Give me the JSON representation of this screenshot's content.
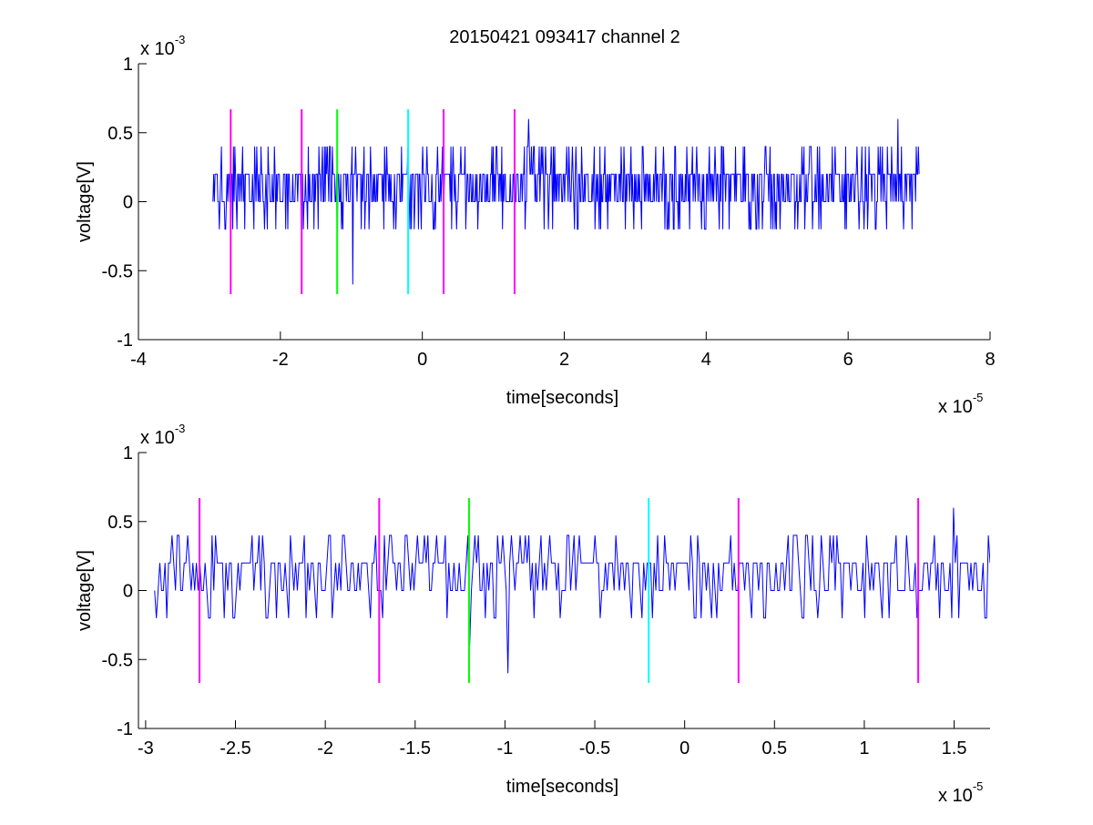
{
  "figure": {
    "title": "20150421 093417 channel 2"
  },
  "colors": {
    "signal": "#0000ff",
    "marker_a": "#ff00ff",
    "marker_b": "#00ff00",
    "marker_c": "#00ffff",
    "axes": "#000000"
  },
  "chart_data": [
    {
      "type": "line",
      "name": "full-trace",
      "xlabel": "time[seconds]",
      "ylabel": "voltage[V]",
      "x_exponent_label": "x 10",
      "x_exponent": "-5",
      "y_exponent_label": "x 10",
      "y_exponent": "-3",
      "xlim": [
        -4e-05,
        8e-05
      ],
      "ylim": [
        -0.001,
        0.001
      ],
      "xticks": [
        -4e-05,
        -2e-05,
        0,
        2e-05,
        4e-05,
        6e-05,
        8e-05
      ],
      "xtick_labels": [
        "-4",
        "-2",
        "0",
        "2",
        "4",
        "6",
        "8"
      ],
      "yticks": [
        -0.001,
        -0.0005,
        0,
        0.0005,
        0.001
      ],
      "ytick_labels": [
        "-1",
        "-0.5",
        "0",
        "0.5",
        "1"
      ],
      "series": [
        {
          "color": "#0000ff",
          "x_start": -2.95e-05,
          "x_end": 7e-05,
          "levels": [
            -0.0002,
            0,
            0.0002,
            0.0004
          ],
          "spikes": [
            [
              -1.2e-05,
              -0.0004
            ],
            [
              -9.8e-06,
              -0.0006
            ],
            [
              1.5e-05,
              0.0006
            ],
            [
              6.7e-05,
              0.0006
            ]
          ]
        }
      ],
      "markers": [
        {
          "x": -2.7e-05,
          "color": "#ff00ff",
          "ymin": -0.00067,
          "ymax": 0.00067
        },
        {
          "x": -1.7e-05,
          "color": "#ff00ff",
          "ymin": -0.00067,
          "ymax": 0.00067
        },
        {
          "x": -1.2e-05,
          "color": "#00ff00",
          "ymin": -0.00067,
          "ymax": 0.00067
        },
        {
          "x": -2e-06,
          "color": "#00ffff",
          "ymin": -0.00067,
          "ymax": 0.00067
        },
        {
          "x": 3e-06,
          "color": "#ff00ff",
          "ymin": -0.00067,
          "ymax": 0.00067
        },
        {
          "x": 1.3e-05,
          "color": "#ff00ff",
          "ymin": -0.00067,
          "ymax": 0.00067
        }
      ],
      "grid": false
    },
    {
      "type": "line",
      "name": "zoomed-trace",
      "xlabel": "time[seconds]",
      "ylabel": "voltage[V]",
      "x_exponent_label": "x 10",
      "x_exponent": "-5",
      "y_exponent_label": "x 10",
      "y_exponent": "-3",
      "xlim": [
        -3.04e-05,
        1.7e-05
      ],
      "ylim": [
        -0.001,
        0.001
      ],
      "xticks": [
        -3e-05,
        -2.5e-05,
        -2e-05,
        -1.5e-05,
        -1e-05,
        -5e-06,
        0,
        5e-06,
        1e-05,
        1.5e-05
      ],
      "xtick_labels": [
        "-3",
        "-2.5",
        "-2",
        "-1.5",
        "-1",
        "-0.5",
        "0",
        "0.5",
        "1",
        "1.5"
      ],
      "yticks": [
        -0.001,
        -0.0005,
        0,
        0.0005,
        0.001
      ],
      "ytick_labels": [
        "-1",
        "-0.5",
        "0",
        "0.5",
        "1"
      ],
      "series": [
        {
          "color": "#0000ff",
          "x_start": -2.95e-05,
          "x_end": 1.7e-05,
          "levels": [
            -0.0002,
            0,
            0.0002,
            0.0004
          ],
          "spikes": [
            [
              -2.82e-05,
              0.0004
            ],
            [
              -1.2e-05,
              -0.0004
            ],
            [
              -9.8e-06,
              -0.0006
            ],
            [
              1.5e-05,
              0.0006
            ]
          ]
        }
      ],
      "markers": [
        {
          "x": -2.7e-05,
          "color": "#ff00ff",
          "ymin": -0.00067,
          "ymax": 0.00067
        },
        {
          "x": -1.7e-05,
          "color": "#ff00ff",
          "ymin": -0.00067,
          "ymax": 0.00067
        },
        {
          "x": -1.2e-05,
          "color": "#00ff00",
          "ymin": -0.00067,
          "ymax": 0.00067
        },
        {
          "x": -2e-06,
          "color": "#00ffff",
          "ymin": -0.00067,
          "ymax": 0.00067
        },
        {
          "x": 3e-06,
          "color": "#ff00ff",
          "ymin": -0.00067,
          "ymax": 0.00067
        },
        {
          "x": 1.3e-05,
          "color": "#ff00ff",
          "ymin": -0.00067,
          "ymax": 0.00067
        }
      ],
      "grid": false
    }
  ]
}
